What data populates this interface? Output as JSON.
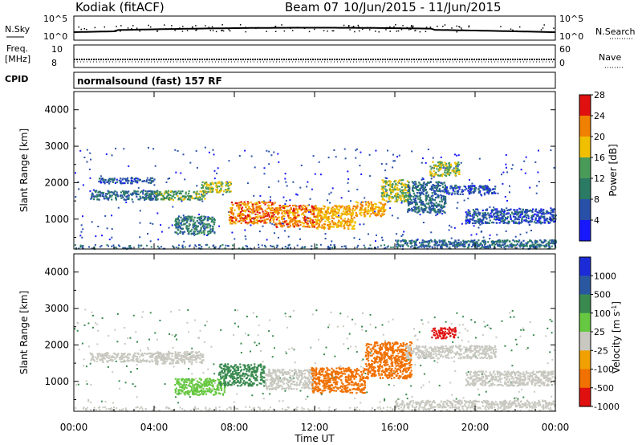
{
  "header": {
    "station": "Kodiak (fitACF)",
    "beam": "Beam 07",
    "date_range": "10/Jun/2015 - 11/Jun/2015"
  },
  "strips": {
    "nsky_label": "N.Sky",
    "nsearch_label": "N.Search",
    "nsky_ticks": [
      "10^5",
      "10^0"
    ],
    "nsearch_ticks": [
      "10^5",
      "10^0"
    ],
    "freq_label_1": "Freq.",
    "freq_label_2": "[MHz]",
    "freq_ticks": [
      "10",
      "8"
    ],
    "nave_label": "Nave",
    "nave_ticks": [
      "60",
      "0"
    ],
    "cpid_label": "CPID",
    "cpid_text": "normalsound (fast) 157 RF"
  },
  "chart_data": [
    {
      "type": "heatmap",
      "name": "Power",
      "ylabel": "Slant Range [km]",
      "xlabel": "Time UT",
      "xlim": [
        "00:00",
        "24:00"
      ],
      "ylim": [
        180,
        4500
      ],
      "yticks": [
        1000,
        2000,
        3000,
        4000
      ],
      "xticks": [
        "00:00",
        "04:00",
        "08:00",
        "12:00",
        "16:00",
        "20:00",
        "00:00"
      ],
      "colorbar": {
        "label": "Power [dB]",
        "ticks": [
          "4",
          "8",
          "12",
          "16",
          "20",
          "24",
          "28"
        ],
        "colors": [
          "#1818ff",
          "#2850a8",
          "#2a7a64",
          "#4a9a5a",
          "#f0c000",
          "#f08000",
          "#e01010"
        ]
      },
      "regions": [
        {
          "t0": 0.8,
          "t1": 4.2,
          "r0": 1550,
          "r1": 1800,
          "level": 10
        },
        {
          "t0": 1.2,
          "t1": 4.0,
          "r0": 2000,
          "r1": 2150,
          "level": 8
        },
        {
          "t0": 4.0,
          "t1": 6.5,
          "r0": 1550,
          "r1": 1800,
          "level": 16
        },
        {
          "t0": 6.3,
          "t1": 7.8,
          "r0": 1750,
          "r1": 2050,
          "level": 18
        },
        {
          "t0": 5.0,
          "t1": 7.0,
          "r0": 600,
          "r1": 1100,
          "level": 12
        },
        {
          "t0": 7.7,
          "t1": 10.0,
          "r0": 900,
          "r1": 1500,
          "level": 24
        },
        {
          "t0": 10.0,
          "t1": 12.0,
          "r0": 800,
          "r1": 1400,
          "level": 24
        },
        {
          "t0": 12.0,
          "t1": 14.0,
          "r0": 750,
          "r1": 1400,
          "level": 22
        },
        {
          "t0": 14.0,
          "t1": 15.5,
          "r0": 1100,
          "r1": 1500,
          "level": 22
        },
        {
          "t0": 15.3,
          "t1": 16.7,
          "r0": 1500,
          "r1": 2100,
          "level": 18
        },
        {
          "t0": 16.6,
          "t1": 18.5,
          "r0": 1200,
          "r1": 2050,
          "level": 10
        },
        {
          "t0": 17.7,
          "t1": 19.2,
          "r0": 2200,
          "r1": 2600,
          "level": 18
        },
        {
          "t0": 18.5,
          "t1": 21.0,
          "r0": 1700,
          "r1": 1950,
          "level": 8
        },
        {
          "t0": 19.5,
          "t1": 24.0,
          "r0": 900,
          "r1": 1300,
          "level": 8
        },
        {
          "t0": 16.0,
          "t1": 24.0,
          "r0": 250,
          "r1": 450,
          "level": 10
        }
      ]
    },
    {
      "type": "heatmap",
      "name": "Velocity",
      "ylabel": "Slant Range [km]",
      "xlabel": "Time UT",
      "xlim": [
        "00:00",
        "24:00"
      ],
      "ylim": [
        180,
        4500
      ],
      "yticks": [
        1000,
        2000,
        3000,
        4000
      ],
      "xticks": [
        "00:00",
        "04:00",
        "08:00",
        "12:00",
        "16:00",
        "20:00",
        "00:00"
      ],
      "colorbar": {
        "label": "Velocity [m s^-1]",
        "ticks": [
          "1000",
          "500",
          "100",
          "25",
          "-25",
          "-100",
          "-500",
          "-1000"
        ],
        "colors": [
          "#1c2bd8",
          "#2a58a0",
          "#3a8a50",
          "#66c840",
          "#c8c8c0",
          "#f0a000",
          "#f07000",
          "#e01010"
        ]
      },
      "regions": [
        {
          "t0": 0.8,
          "t1": 4.5,
          "r0": 1550,
          "r1": 1800,
          "level": -10
        },
        {
          "t0": 4.0,
          "t1": 6.5,
          "r0": 1500,
          "r1": 1850,
          "level": -10
        },
        {
          "t0": 5.0,
          "t1": 7.5,
          "r0": 650,
          "r1": 1100,
          "level": 60
        },
        {
          "t0": 7.2,
          "t1": 9.5,
          "r0": 900,
          "r1": 1500,
          "level": 300
        },
        {
          "t0": 9.5,
          "t1": 12.0,
          "r0": 800,
          "r1": 1350,
          "level": -10
        },
        {
          "t0": 11.8,
          "t1": 14.5,
          "r0": 700,
          "r1": 1400,
          "level": -150
        },
        {
          "t0": 14.5,
          "t1": 16.8,
          "r0": 1100,
          "r1": 2100,
          "level": -150
        },
        {
          "t0": 17.8,
          "t1": 19.0,
          "r0": 2200,
          "r1": 2500,
          "level": -1000
        },
        {
          "t0": 16.5,
          "t1": 21.0,
          "r0": 1650,
          "r1": 2000,
          "level": -10
        },
        {
          "t0": 19.5,
          "t1": 24.0,
          "r0": 900,
          "r1": 1300,
          "level": -10
        },
        {
          "t0": 16.0,
          "t1": 24.0,
          "r0": 300,
          "r1": 500,
          "level": -10
        }
      ]
    }
  ]
}
